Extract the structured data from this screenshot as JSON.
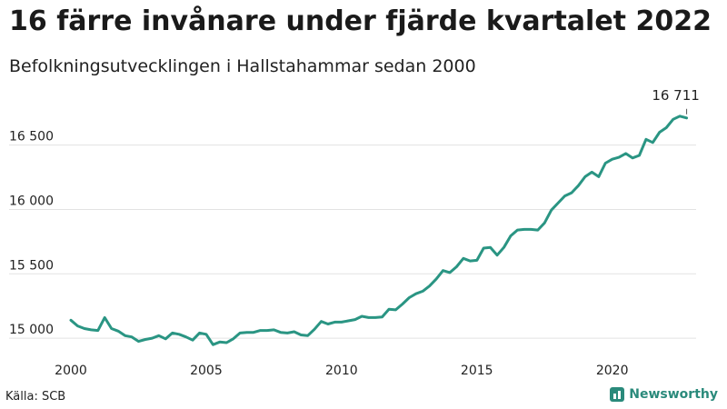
{
  "header": {
    "title": "16 färre invånare under fjärde kvartalet 2022",
    "subtitle": "Befolkningsutvecklingen i Hallstahammar sedan 2000"
  },
  "footer": {
    "source": "Källa: SCB",
    "brand": "Newsworthy"
  },
  "colors": {
    "line": "#2a9583",
    "grid": "#e3e3e3",
    "text": "#222222"
  },
  "chart_data": {
    "type": "line",
    "title": "16 färre invånare under fjärde kvartalet 2022",
    "subtitle": "Befolkningsutvecklingen i Hallstahammar sedan 2000",
    "xlabel": "",
    "ylabel": "",
    "xlim": [
      2000,
      2023.1
    ],
    "ylim": [
      14930,
      16780
    ],
    "x_ticks": [
      {
        "value": 2000,
        "label": "2000"
      },
      {
        "value": 2005,
        "label": "2005"
      },
      {
        "value": 2010,
        "label": "2010"
      },
      {
        "value": 2015,
        "label": "2015"
      },
      {
        "value": 2020,
        "label": "2020"
      }
    ],
    "y_ticks": [
      {
        "value": 15000,
        "label": "15 000"
      },
      {
        "value": 15500,
        "label": "15 500"
      },
      {
        "value": 16000,
        "label": "16 000"
      },
      {
        "value": 16500,
        "label": "16 500"
      }
    ],
    "grid": true,
    "annotation": {
      "x": 2022.75,
      "y": 16711,
      "label": "16 711"
    },
    "series": [
      {
        "points": [
          [
            2000.0,
            15140
          ],
          [
            2000.25,
            15095
          ],
          [
            2000.5,
            15075
          ],
          [
            2000.75,
            15065
          ],
          [
            2001.0,
            15060
          ],
          [
            2001.25,
            15160
          ],
          [
            2001.5,
            15075
          ],
          [
            2001.75,
            15055
          ],
          [
            2002.0,
            15020
          ],
          [
            2002.25,
            15010
          ],
          [
            2002.5,
            14975
          ],
          [
            2002.75,
            14990
          ],
          [
            2003.0,
            15000
          ],
          [
            2003.25,
            15020
          ],
          [
            2003.5,
            14995
          ],
          [
            2003.75,
            15040
          ],
          [
            2004.0,
            15030
          ],
          [
            2004.25,
            15010
          ],
          [
            2004.5,
            14985
          ],
          [
            2004.75,
            15040
          ],
          [
            2005.0,
            15030
          ],
          [
            2005.25,
            14950
          ],
          [
            2005.5,
            14970
          ],
          [
            2005.75,
            14965
          ],
          [
            2006.0,
            14995
          ],
          [
            2006.25,
            15040
          ],
          [
            2006.5,
            15045
          ],
          [
            2006.75,
            15045
          ],
          [
            2007.0,
            15060
          ],
          [
            2007.25,
            15060
          ],
          [
            2007.5,
            15065
          ],
          [
            2007.75,
            15045
          ],
          [
            2008.0,
            15040
          ],
          [
            2008.25,
            15050
          ],
          [
            2008.5,
            15025
          ],
          [
            2008.75,
            15020
          ],
          [
            2009.0,
            15070
          ],
          [
            2009.25,
            15130
          ],
          [
            2009.5,
            15110
          ],
          [
            2009.75,
            15125
          ],
          [
            2010.0,
            15125
          ],
          [
            2010.25,
            15135
          ],
          [
            2010.5,
            15145
          ],
          [
            2010.75,
            15170
          ],
          [
            2011.0,
            15160
          ],
          [
            2011.25,
            15160
          ],
          [
            2011.5,
            15165
          ],
          [
            2011.75,
            15225
          ],
          [
            2012.0,
            15220
          ],
          [
            2012.25,
            15265
          ],
          [
            2012.5,
            15315
          ],
          [
            2012.75,
            15345
          ],
          [
            2013.0,
            15365
          ],
          [
            2013.25,
            15405
          ],
          [
            2013.5,
            15460
          ],
          [
            2013.75,
            15525
          ],
          [
            2014.0,
            15510
          ],
          [
            2014.25,
            15555
          ],
          [
            2014.5,
            15620
          ],
          [
            2014.75,
            15600
          ],
          [
            2015.0,
            15605
          ],
          [
            2015.25,
            15700
          ],
          [
            2015.5,
            15705
          ],
          [
            2015.75,
            15645
          ],
          [
            2016.0,
            15705
          ],
          [
            2016.25,
            15795
          ],
          [
            2016.5,
            15840
          ],
          [
            2016.75,
            15845
          ],
          [
            2017.0,
            15845
          ],
          [
            2017.25,
            15840
          ],
          [
            2017.5,
            15895
          ],
          [
            2017.75,
            15995
          ],
          [
            2018.0,
            16050
          ],
          [
            2018.25,
            16105
          ],
          [
            2018.5,
            16130
          ],
          [
            2018.75,
            16185
          ],
          [
            2019.0,
            16255
          ],
          [
            2019.25,
            16290
          ],
          [
            2019.5,
            16255
          ],
          [
            2019.75,
            16360
          ],
          [
            2020.0,
            16390
          ],
          [
            2020.25,
            16405
          ],
          [
            2020.5,
            16435
          ],
          [
            2020.75,
            16400
          ],
          [
            2021.0,
            16420
          ],
          [
            2021.25,
            16545
          ],
          [
            2021.5,
            16520
          ],
          [
            2021.75,
            16600
          ],
          [
            2022.0,
            16635
          ],
          [
            2022.25,
            16700
          ],
          [
            2022.5,
            16725
          ],
          [
            2022.75,
            16711
          ]
        ]
      }
    ]
  }
}
